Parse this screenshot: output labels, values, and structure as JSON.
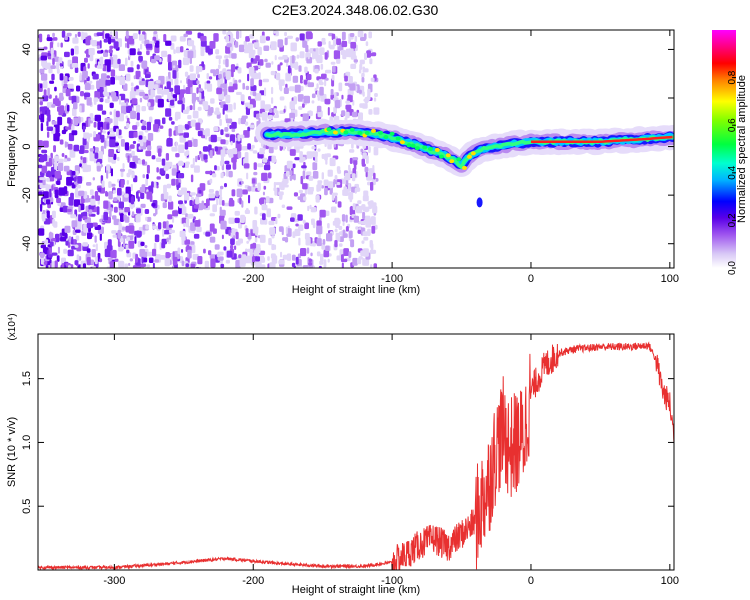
{
  "title": "C2E3.2024.348.06.02.G30",
  "colors": {
    "snr_line": "#e83030",
    "axis": "#000000",
    "background": "#ffffff"
  },
  "chart_data": [
    {
      "type": "heatmap",
      "title": "C2E3.2024.348.06.02.G30",
      "xlabel": "Height of straight line (km)",
      "ylabel": "Frequency (Hz)",
      "xlim": [
        -355,
        103
      ],
      "ylim": [
        -50,
        48
      ],
      "xticks": [
        -300,
        -200,
        -100,
        0,
        100
      ],
      "yticks": [
        -40,
        -20,
        0,
        20,
        40
      ],
      "colorbar": {
        "label": "Normalized spectral amplitude",
        "range": [
          0,
          1
        ],
        "ticks": [
          "0.0",
          "0.2",
          "0.4",
          "0.6",
          "0.8"
        ],
        "colormap": "white-purple-blue-cyan-green-yellow-red-magenta"
      },
      "ridge": {
        "x": [
          -190,
          -170,
          -150,
          -130,
          -110,
          -90,
          -75,
          -60,
          -50,
          -45,
          -35,
          -25,
          -15,
          0,
          20,
          50,
          80,
          103
        ],
        "frequency": [
          5,
          5,
          6,
          6,
          5,
          2,
          -1,
          -4,
          -8,
          -4,
          -1,
          0,
          1,
          2,
          2,
          2,
          3,
          4
        ]
      },
      "noise_region_x": [
        -355,
        -120
      ]
    },
    {
      "type": "line",
      "xlabel": "Height of straight line (km)",
      "ylabel": "SNR (10 * v/v)",
      "y_multiplier": "(x10⁴)",
      "xlim": [
        -355,
        103
      ],
      "ylim": [
        0,
        1.85
      ],
      "xticks": [
        -300,
        -200,
        -100,
        0,
        100
      ],
      "yticks": [
        0.5,
        1.0,
        1.5
      ],
      "ytick_labels": [
        "0.5",
        "1.0",
        "1.5"
      ],
      "series": [
        {
          "x": [
            -355,
            -300,
            -260,
            -230,
            -220,
            -200,
            -180,
            -150,
            -120,
            -100,
            -90,
            -80,
            -70,
            -60,
            -50,
            -40,
            -30,
            -25,
            -20,
            -15,
            -10,
            -5,
            0,
            10,
            20,
            30,
            50,
            70,
            85,
            90,
            95,
            100,
            103
          ],
          "y": [
            0.02,
            0.02,
            0.05,
            0.08,
            0.09,
            0.07,
            0.05,
            0.03,
            0.03,
            0.06,
            0.12,
            0.2,
            0.25,
            0.18,
            0.28,
            0.38,
            0.7,
            0.95,
            1.1,
            0.95,
            1.0,
            1.05,
            1.4,
            1.6,
            1.7,
            1.73,
            1.75,
            1.75,
            1.76,
            1.65,
            1.4,
            1.3,
            1.05
          ]
        }
      ]
    }
  ]
}
